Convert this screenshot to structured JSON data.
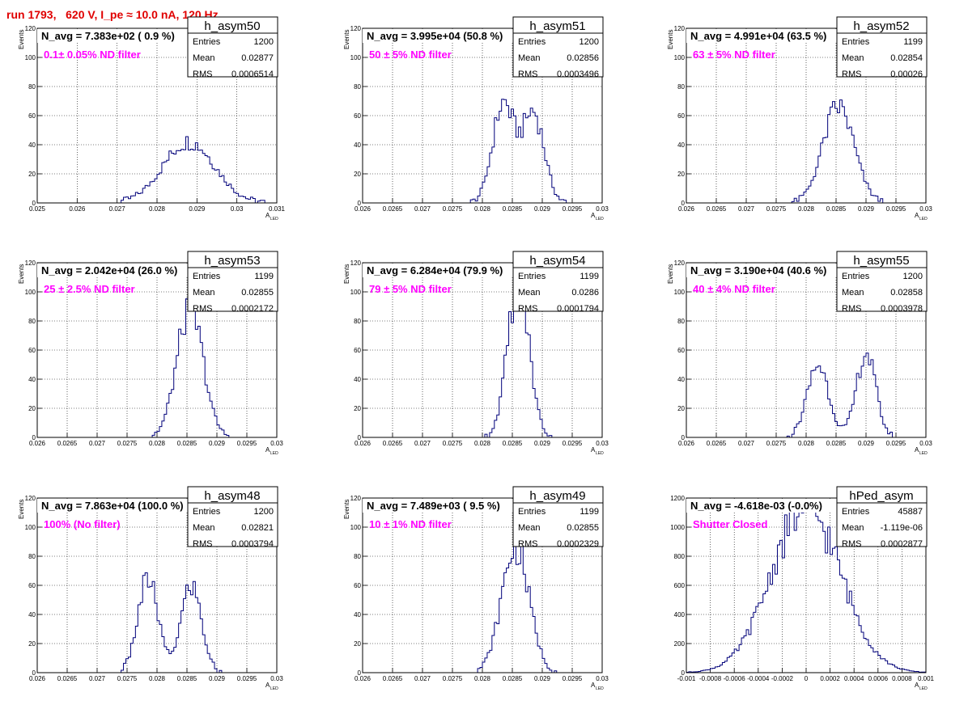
{
  "header": "run 1793,   620 V, I_pe ≈ 10.0 nA, 120 Hz",
  "colors": {
    "hist": "#00007a",
    "annotation": "#ff00ff",
    "header": "#e00000",
    "grid": "#000000"
  },
  "chart_data": [
    {
      "type": "bar",
      "title": "h_asym50",
      "navg": "N_avg = 7.383e+02 ( 0.9 %)",
      "annotation": "0.1± 0.05% ND filter",
      "stats": [
        [
          "Entries",
          "1200"
        ],
        [
          "Mean",
          "0.02877"
        ],
        [
          "RMS",
          "0.0006514"
        ]
      ],
      "xlabel": "A",
      "xlabel_sub": "LED",
      "ylabel": "Events",
      "xlim": [
        0.025,
        0.031
      ],
      "ylim": [
        0,
        120
      ],
      "xticks": [
        "0.025",
        "0.026",
        "0.027",
        "0.028",
        "0.029",
        "0.03",
        "0.031"
      ],
      "yticks": [
        "0",
        "20",
        "40",
        "60",
        "80",
        "100",
        "120"
      ],
      "peaks": [
        {
          "mu": 0.0288,
          "sigma": 0.00065,
          "amp": 42
        }
      ],
      "bins": [
        0.025,
        0.031,
        100
      ]
    },
    {
      "type": "bar",
      "title": "h_asym51",
      "navg": "N_avg = 3.995e+04 (50.8 %)",
      "annotation": "50 ± 5% ND filter",
      "stats": [
        [
          "Entries",
          "1200"
        ],
        [
          "Mean",
          "0.02856"
        ],
        [
          "RMS",
          "0.0003496"
        ]
      ],
      "xlabel": "A",
      "xlabel_sub": "LED",
      "ylabel": "Events",
      "xlim": [
        0.026,
        0.03
      ],
      "ylim": [
        0,
        120
      ],
      "xticks": [
        "0.026",
        "0.0265",
        "0.027",
        "0.0275",
        "0.028",
        "0.0285",
        "0.029",
        "0.0295",
        "0.03"
      ],
      "yticks": [
        "0",
        "20",
        "40",
        "60",
        "80",
        "100",
        "120"
      ],
      "peaks": [
        {
          "mu": 0.02835,
          "sigma": 0.00018,
          "amp": 68
        },
        {
          "mu": 0.02885,
          "sigma": 0.00018,
          "amp": 62
        }
      ],
      "bins": [
        0.026,
        0.03,
        100
      ]
    },
    {
      "type": "bar",
      "title": "h_asym52",
      "navg": "N_avg = 4.991e+04 (63.5 %)",
      "annotation": "63 ± 5% ND filter",
      "stats": [
        [
          "Entries",
          "1199"
        ],
        [
          "Mean",
          "0.02854"
        ],
        [
          "RMS",
          "0.00026"
        ]
      ],
      "xlabel": "A",
      "xlabel_sub": "LED",
      "ylabel": "Events",
      "xlim": [
        0.026,
        0.03
      ],
      "ylim": [
        0,
        120
      ],
      "xticks": [
        "0.026",
        "0.0265",
        "0.027",
        "0.0275",
        "0.028",
        "0.0285",
        "0.029",
        "0.0295",
        "0.03"
      ],
      "yticks": [
        "0",
        "20",
        "40",
        "60",
        "80",
        "100",
        "120"
      ],
      "peaks": [
        {
          "mu": 0.02854,
          "sigma": 0.00026,
          "amp": 66
        }
      ],
      "bins": [
        0.026,
        0.03,
        100
      ]
    },
    {
      "type": "bar",
      "title": "h_asym53",
      "navg": "N_avg = 2.042e+04 (26.0 %)",
      "annotation": "25 ± 2.5% ND filter",
      "stats": [
        [
          "Entries",
          "1199"
        ],
        [
          "Mean",
          "0.02855"
        ],
        [
          "RMS",
          "0.0002172"
        ]
      ],
      "xlabel": "A",
      "xlabel_sub": "LED",
      "ylabel": "Events",
      "xlim": [
        0.026,
        0.03
      ],
      "ylim": [
        0,
        120
      ],
      "xticks": [
        "0.026",
        "0.0265",
        "0.027",
        "0.0275",
        "0.028",
        "0.0285",
        "0.029",
        "0.0295",
        "0.03"
      ],
      "yticks": [
        "0",
        "20",
        "40",
        "60",
        "80",
        "100",
        "120"
      ],
      "peaks": [
        {
          "mu": 0.02855,
          "sigma": 0.00022,
          "amp": 88
        }
      ],
      "bins": [
        0.026,
        0.03,
        100
      ]
    },
    {
      "type": "bar",
      "title": "h_asym54",
      "navg": "N_avg = 6.284e+04 (79.9 %)",
      "annotation": "79 ± 5% ND filter",
      "stats": [
        [
          "Entries",
          "1199"
        ],
        [
          "Mean",
          "0.0286"
        ],
        [
          "RMS",
          "0.0001794"
        ]
      ],
      "xlabel": "A",
      "xlabel_sub": "LED",
      "ylabel": "Events",
      "xlim": [
        0.026,
        0.03
      ],
      "ylim": [
        0,
        120
      ],
      "xticks": [
        "0.026",
        "0.0265",
        "0.027",
        "0.0275",
        "0.028",
        "0.0285",
        "0.029",
        "0.0295",
        "0.03"
      ],
      "yticks": [
        "0",
        "20",
        "40",
        "60",
        "80",
        "100",
        "120"
      ],
      "peaks": [
        {
          "mu": 0.0286,
          "sigma": 0.00018,
          "amp": 106
        }
      ],
      "bins": [
        0.026,
        0.03,
        100
      ]
    },
    {
      "type": "bar",
      "title": "h_asym55",
      "navg": "N_avg = 3.190e+04 (40.6 %)",
      "annotation": "40 ± 4% ND filter",
      "stats": [
        [
          "Entries",
          "1200"
        ],
        [
          "Mean",
          "0.02858"
        ],
        [
          "RMS",
          "0.0003978"
        ]
      ],
      "xlabel": "A",
      "xlabel_sub": "LED",
      "ylabel": "Events",
      "xlim": [
        0.026,
        0.03
      ],
      "ylim": [
        0,
        120
      ],
      "xticks": [
        "0.026",
        "0.0265",
        "0.027",
        "0.0275",
        "0.028",
        "0.0285",
        "0.029",
        "0.0295",
        "0.03"
      ],
      "yticks": [
        "0",
        "20",
        "40",
        "60",
        "80",
        "100",
        "120"
      ],
      "peaks": [
        {
          "mu": 0.0282,
          "sigma": 0.00018,
          "amp": 50
        },
        {
          "mu": 0.029,
          "sigma": 0.00016,
          "amp": 58
        }
      ],
      "bins": [
        0.026,
        0.03,
        100
      ]
    },
    {
      "type": "bar",
      "title": "h_asym48",
      "navg": "N_avg = 7.863e+04 (100.0 %)",
      "annotation": "100% (No filter)",
      "stats": [
        [
          "Entries",
          "1200"
        ],
        [
          "Mean",
          "0.02821"
        ],
        [
          "RMS",
          "0.0003794"
        ]
      ],
      "xlabel": "A",
      "xlabel_sub": "LED",
      "ylabel": "Events",
      "xlim": [
        0.026,
        0.03
      ],
      "ylim": [
        0,
        120
      ],
      "xticks": [
        "0.026",
        "0.0265",
        "0.027",
        "0.0275",
        "0.028",
        "0.0285",
        "0.029",
        "0.0295",
        "0.03"
      ],
      "yticks": [
        "0",
        "20",
        "40",
        "60",
        "80",
        "100",
        "120"
      ],
      "peaks": [
        {
          "mu": 0.02785,
          "sigma": 0.00017,
          "amp": 64
        },
        {
          "mu": 0.02857,
          "sigma": 0.00017,
          "amp": 60
        }
      ],
      "bins": [
        0.026,
        0.03,
        100
      ]
    },
    {
      "type": "bar",
      "title": "h_asym49",
      "navg": "N_avg = 7.489e+03 ( 9.5 %)",
      "annotation": "10 ± 1% ND filter",
      "stats": [
        [
          "Entries",
          "1199"
        ],
        [
          "Mean",
          "0.02855"
        ],
        [
          "RMS",
          "0.0002329"
        ]
      ],
      "xlabel": "A",
      "xlabel_sub": "LED",
      "ylabel": "Events",
      "xlim": [
        0.026,
        0.03
      ],
      "ylim": [
        0,
        120
      ],
      "xticks": [
        "0.026",
        "0.0265",
        "0.027",
        "0.0275",
        "0.028",
        "0.0285",
        "0.029",
        "0.0295",
        "0.03"
      ],
      "yticks": [
        "0",
        "20",
        "40",
        "60",
        "80",
        "100",
        "120"
      ],
      "peaks": [
        {
          "mu": 0.02855,
          "sigma": 0.00023,
          "amp": 86
        }
      ],
      "bins": [
        0.026,
        0.03,
        100
      ]
    },
    {
      "type": "bar",
      "title": "hPed_asym",
      "navg": "N_avg = -4.618e-03 (-0.0%)",
      "annotation": "Shutter Closed",
      "stats": [
        [
          "Entries",
          "45887"
        ],
        [
          "Mean",
          "-1.119e-06"
        ],
        [
          "RMS",
          "0.0002877"
        ]
      ],
      "xlabel": "A",
      "xlabel_sub": "LED",
      "ylabel": "",
      "xlim": [
        -0.001,
        0.001
      ],
      "ylim": [
        0,
        1200
      ],
      "xticks": [
        "-0.001",
        "-0.0008",
        "-0.0006",
        "-0.0004",
        "-0.0002",
        "0",
        "0.0002",
        "0.0004",
        "0.0006",
        "0.0008",
        "0.001"
      ],
      "yticks": [
        "0",
        "200",
        "400",
        "600",
        "800",
        "1000",
        "1200"
      ],
      "peaks": [
        {
          "mu": 0.0,
          "sigma": 0.00029,
          "amp": 1130
        }
      ],
      "bins": [
        -0.001,
        0.001,
        100
      ]
    }
  ]
}
